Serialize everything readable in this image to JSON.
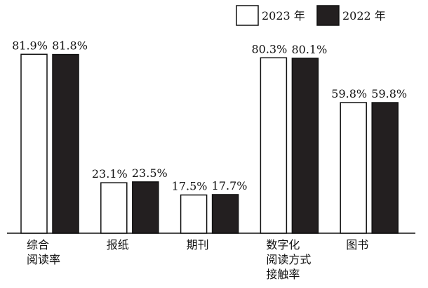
{
  "chart_data": {
    "type": "bar",
    "categories": [
      "综合\n阅读率",
      "报纸",
      "期刊",
      "数字化\n阅读方式\n接触率",
      "图书"
    ],
    "series": [
      {
        "name": "2023 年",
        "color": "#ffffff",
        "values": [
          81.9,
          23.1,
          17.5,
          80.3,
          59.8
        ],
        "value_labels": [
          "81.9%",
          "23.1%",
          "17.5%",
          "80.3%",
          "59.8%"
        ]
      },
      {
        "name": "2022 年",
        "color": "#231f20",
        "values": [
          81.8,
          23.5,
          17.7,
          80.1,
          59.8
        ],
        "value_labels": [
          "81.8%",
          "23.5%",
          "17.7%",
          "80.1%",
          "59.8%"
        ]
      }
    ],
    "legend": "top-right"
  }
}
